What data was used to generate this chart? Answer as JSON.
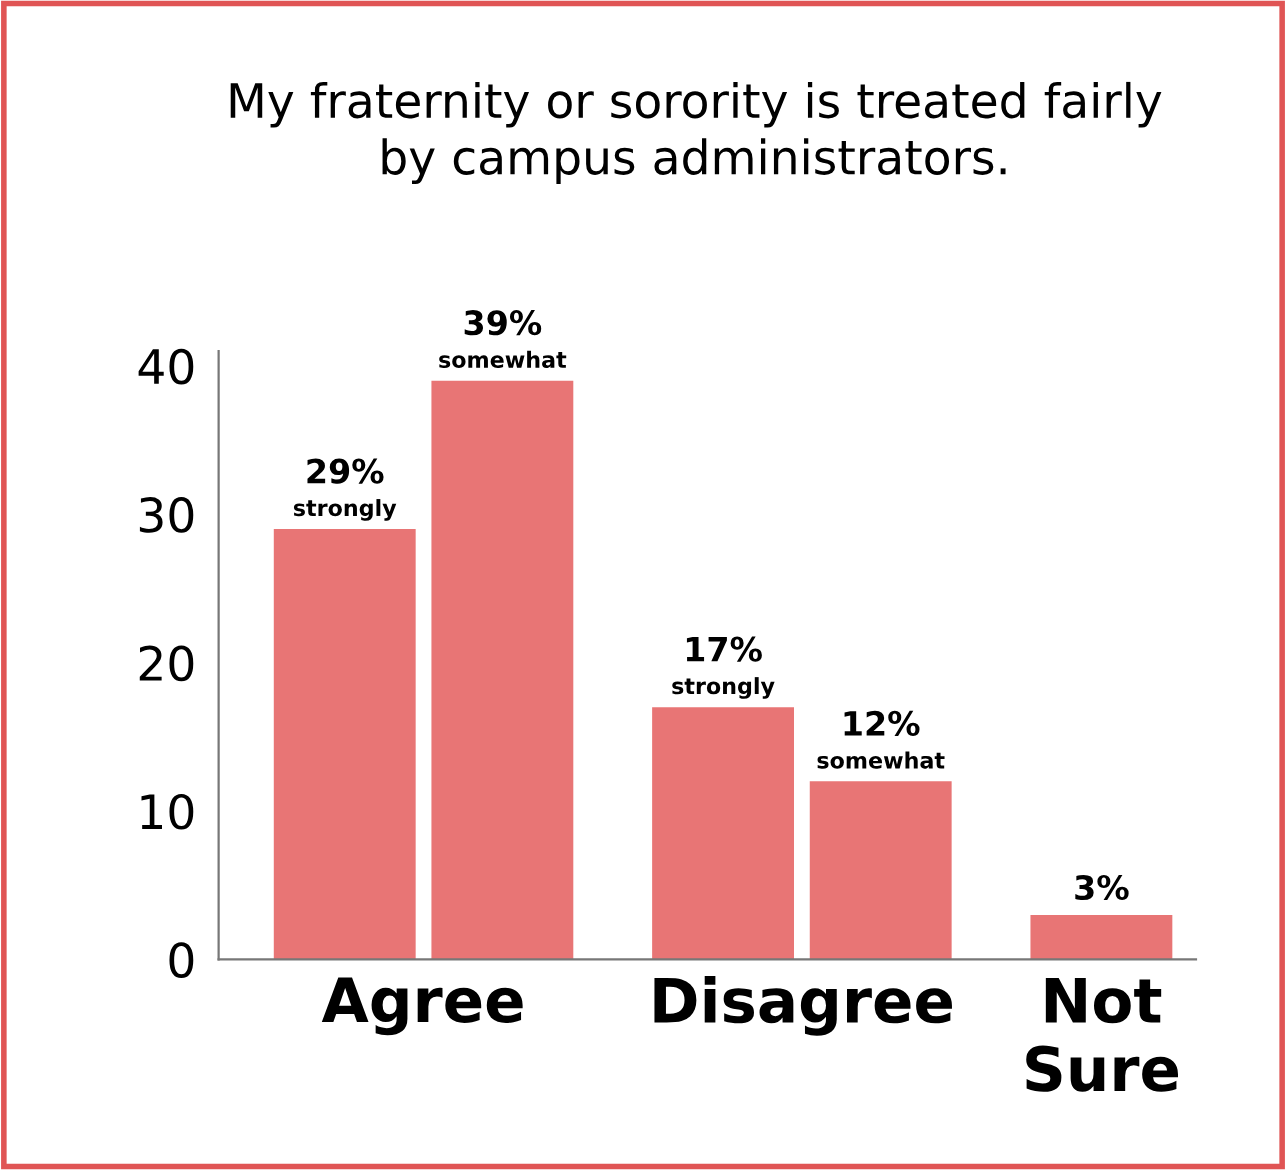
{
  "chart_data": {
    "type": "bar",
    "title": "My fraternity or sorority is treated fairly\nby campus administrators.",
    "categories": [
      "Agree",
      "Disagree",
      "Not\nSure"
    ],
    "series": [
      {
        "name": "strongly",
        "color": "#e87575",
        "values": [
          29,
          17,
          null
        ],
        "value_labels": [
          "29%",
          "17%",
          null
        ]
      },
      {
        "name": "somewhat",
        "color": "#e87575",
        "values": [
          39,
          12,
          null
        ],
        "value_labels": [
          "39%",
          "12%",
          null
        ]
      },
      {
        "color": "#e87575",
        "values": [
          null,
          null,
          3
        ],
        "value_labels": [
          null,
          null,
          "3%"
        ]
      }
    ],
    "ylim": [
      0,
      41
    ],
    "yticks": [
      0,
      10,
      20,
      30,
      40
    ],
    "grid": false,
    "legend": false
  }
}
